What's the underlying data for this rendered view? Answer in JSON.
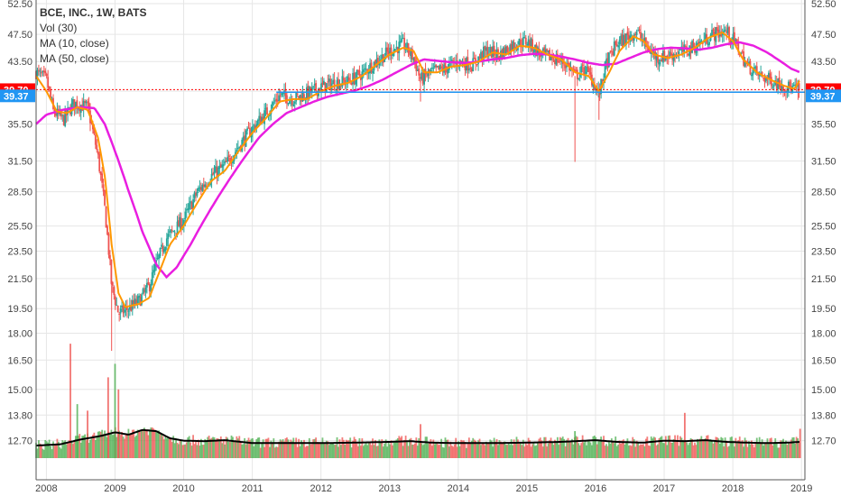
{
  "legend": {
    "title": "BCE, INC., 1W, BATS",
    "volume": "Vol (30)",
    "ma10": "MA (10, close)",
    "ma50": "MA (50, close)"
  },
  "colors": {
    "up": "#26a69a",
    "up_volume": "#4caf50",
    "down": "#ef5350",
    "ma10": "#ff9800",
    "ma50": "#e91ee0",
    "vol_ma": "#000000",
    "badge_last": "#ff0000",
    "badge_ref": "#2196f3",
    "grid": "#e6e6e6"
  },
  "chart_data": {
    "type": "line",
    "title": "BCE, INC., 1W, BATS",
    "x_range": [
      2007.85,
      2019.05
    ],
    "y_scale": "log",
    "ylim": [
      12.0,
      52.5
    ],
    "grid": true,
    "legend_placement": "top-left",
    "x_tick_labels": [
      "2008",
      "2009",
      "2010",
      "2011",
      "2012",
      "2013",
      "2014",
      "2015",
      "2016",
      "2017",
      "2018",
      "2019"
    ],
    "y_tick_labels": [
      "52.50",
      "47.50",
      "43.50",
      "39.50",
      "35.50",
      "31.50",
      "28.50",
      "25.50",
      "23.50",
      "21.50",
      "19.50",
      "18.00",
      "16.50",
      "15.00",
      "13.80",
      "12.70"
    ],
    "last_price": "39.70",
    "reference_price": "39.37",
    "price_anchors": [
      [
        2007.85,
        42.0
      ],
      [
        2008.0,
        41.0
      ],
      [
        2008.1,
        37.0
      ],
      [
        2008.25,
        36.0
      ],
      [
        2008.4,
        38.0
      ],
      [
        2008.6,
        37.5
      ],
      [
        2008.75,
        32.0
      ],
      [
        2008.85,
        27.0
      ],
      [
        2008.95,
        21.0
      ],
      [
        2009.05,
        19.2
      ],
      [
        2009.2,
        19.5
      ],
      [
        2009.35,
        20.0
      ],
      [
        2009.5,
        21.0
      ],
      [
        2009.6,
        22.5
      ],
      [
        2009.75,
        24.5
      ],
      [
        2010.0,
        26.0
      ],
      [
        2010.2,
        28.5
      ],
      [
        2010.4,
        30.0
      ],
      [
        2010.6,
        31.0
      ],
      [
        2010.8,
        33.0
      ],
      [
        2011.0,
        35.0
      ],
      [
        2011.2,
        36.8
      ],
      [
        2011.4,
        39.0
      ],
      [
        2011.6,
        38.5
      ],
      [
        2011.8,
        39.2
      ],
      [
        2012.0,
        40.0
      ],
      [
        2012.2,
        40.6
      ],
      [
        2012.4,
        40.8
      ],
      [
        2012.6,
        41.8
      ],
      [
        2012.8,
        43.5
      ],
      [
        2013.0,
        45.0
      ],
      [
        2013.2,
        46.0
      ],
      [
        2013.35,
        44.0
      ],
      [
        2013.45,
        41.0
      ],
      [
        2013.6,
        42.0
      ],
      [
        2013.8,
        42.5
      ],
      [
        2014.0,
        43.5
      ],
      [
        2014.2,
        43.0
      ],
      [
        2014.4,
        45.0
      ],
      [
        2014.6,
        44.5
      ],
      [
        2014.8,
        46.0
      ],
      [
        2015.0,
        46.5
      ],
      [
        2015.2,
        44.5
      ],
      [
        2015.4,
        44.0
      ],
      [
        2015.6,
        43.0
      ],
      [
        2015.7,
        41.5
      ],
      [
        2015.85,
        42.5
      ],
      [
        2015.95,
        41.0
      ],
      [
        2016.05,
        39.0
      ],
      [
        2016.15,
        43.0
      ],
      [
        2016.3,
        46.0
      ],
      [
        2016.45,
        47.0
      ],
      [
        2016.6,
        48.0
      ],
      [
        2016.75,
        45.5
      ],
      [
        2016.9,
        44.0
      ],
      [
        2017.1,
        44.5
      ],
      [
        2017.3,
        45.0
      ],
      [
        2017.5,
        46.0
      ],
      [
        2017.7,
        47.5
      ],
      [
        2017.9,
        48.0
      ],
      [
        2018.05,
        46.0
      ],
      [
        2018.2,
        43.0
      ],
      [
        2018.4,
        41.5
      ],
      [
        2018.6,
        40.8
      ],
      [
        2018.8,
        40.0
      ],
      [
        2018.95,
        39.7
      ]
    ],
    "ma10_anchors": [
      [
        2007.85,
        41.5
      ],
      [
        2008.0,
        39.5
      ],
      [
        2008.15,
        37.0
      ],
      [
        2008.3,
        36.8
      ],
      [
        2008.45,
        37.5
      ],
      [
        2008.6,
        37.2
      ],
      [
        2008.75,
        34.0
      ],
      [
        2008.85,
        30.0
      ],
      [
        2008.95,
        24.0
      ],
      [
        2009.05,
        20.5
      ],
      [
        2009.15,
        19.6
      ],
      [
        2009.35,
        19.8
      ],
      [
        2009.5,
        20.2
      ],
      [
        2009.65,
        22.0
      ],
      [
        2009.8,
        24.0
      ],
      [
        2010.0,
        25.5
      ],
      [
        2010.2,
        27.5
      ],
      [
        2010.4,
        29.5
      ],
      [
        2010.6,
        30.5
      ],
      [
        2010.8,
        32.5
      ],
      [
        2011.0,
        34.5
      ],
      [
        2011.2,
        36.2
      ],
      [
        2011.4,
        38.2
      ],
      [
        2011.6,
        38.5
      ],
      [
        2011.8,
        38.5
      ],
      [
        2012.0,
        39.5
      ],
      [
        2012.2,
        40.2
      ],
      [
        2012.4,
        40.6
      ],
      [
        2012.6,
        41.5
      ],
      [
        2012.8,
        43.0
      ],
      [
        2013.0,
        44.5
      ],
      [
        2013.2,
        45.5
      ],
      [
        2013.35,
        45.0
      ],
      [
        2013.5,
        42.0
      ],
      [
        2013.7,
        42.0
      ],
      [
        2013.9,
        42.8
      ],
      [
        2014.1,
        43.0
      ],
      [
        2014.3,
        43.5
      ],
      [
        2014.5,
        44.8
      ],
      [
        2014.7,
        44.5
      ],
      [
        2014.9,
        45.8
      ],
      [
        2015.1,
        45.5
      ],
      [
        2015.3,
        44.5
      ],
      [
        2015.5,
        43.8
      ],
      [
        2015.7,
        42.0
      ],
      [
        2015.9,
        41.5
      ],
      [
        2016.05,
        39.5
      ],
      [
        2016.2,
        42.0
      ],
      [
        2016.35,
        45.0
      ],
      [
        2016.55,
        47.2
      ],
      [
        2016.7,
        46.5
      ],
      [
        2016.85,
        44.5
      ],
      [
        2017.05,
        44.0
      ],
      [
        2017.25,
        44.5
      ],
      [
        2017.45,
        45.5
      ],
      [
        2017.65,
        47.0
      ],
      [
        2017.85,
        47.8
      ],
      [
        2018.0,
        46.5
      ],
      [
        2018.15,
        43.8
      ],
      [
        2018.35,
        42.0
      ],
      [
        2018.55,
        41.0
      ],
      [
        2018.75,
        40.2
      ],
      [
        2018.9,
        39.8
      ],
      [
        2018.98,
        41.0
      ]
    ],
    "ma50_anchors": [
      [
        2007.85,
        35.5
      ],
      [
        2008.0,
        36.6
      ],
      [
        2008.25,
        37.2
      ],
      [
        2008.5,
        37.5
      ],
      [
        2008.7,
        37.4
      ],
      [
        2008.85,
        35.5
      ],
      [
        2009.0,
        32.5
      ],
      [
        2009.2,
        28.5
      ],
      [
        2009.4,
        25.0
      ],
      [
        2009.6,
        22.5
      ],
      [
        2009.75,
        21.6
      ],
      [
        2009.9,
        22.3
      ],
      [
        2010.1,
        24.0
      ],
      [
        2010.3,
        26.0
      ],
      [
        2010.5,
        28.0
      ],
      [
        2010.7,
        30.0
      ],
      [
        2010.9,
        32.0
      ],
      [
        2011.1,
        34.0
      ],
      [
        2011.3,
        35.5
      ],
      [
        2011.5,
        36.8
      ],
      [
        2011.7,
        37.5
      ],
      [
        2011.9,
        38.2
      ],
      [
        2012.1,
        38.8
      ],
      [
        2012.3,
        39.2
      ],
      [
        2012.5,
        39.6
      ],
      [
        2012.7,
        40.2
      ],
      [
        2012.9,
        41.0
      ],
      [
        2013.1,
        42.0
      ],
      [
        2013.3,
        43.0
      ],
      [
        2013.5,
        43.8
      ],
      [
        2013.7,
        43.6
      ],
      [
        2013.9,
        43.4
      ],
      [
        2014.1,
        43.3
      ],
      [
        2014.3,
        43.5
      ],
      [
        2014.5,
        43.8
      ],
      [
        2014.7,
        44.0
      ],
      [
        2014.9,
        44.4
      ],
      [
        2015.1,
        44.6
      ],
      [
        2015.3,
        44.5
      ],
      [
        2015.5,
        44.2
      ],
      [
        2015.7,
        43.8
      ],
      [
        2015.9,
        43.3
      ],
      [
        2016.1,
        43.0
      ],
      [
        2016.3,
        43.2
      ],
      [
        2016.5,
        44.0
      ],
      [
        2016.7,
        44.8
      ],
      [
        2016.9,
        45.3
      ],
      [
        2017.1,
        45.5
      ],
      [
        2017.3,
        45.4
      ],
      [
        2017.5,
        45.2
      ],
      [
        2017.7,
        45.5
      ],
      [
        2017.9,
        46.0
      ],
      [
        2018.1,
        46.3
      ],
      [
        2018.3,
        45.8
      ],
      [
        2018.5,
        44.8
      ],
      [
        2018.7,
        43.5
      ],
      [
        2018.85,
        42.5
      ],
      [
        2018.98,
        42.0
      ]
    ],
    "volume_ma_levels": [
      [
        2007.85,
        12.5
      ],
      [
        2008.2,
        12.55
      ],
      [
        2008.5,
        12.75
      ],
      [
        2008.8,
        12.9
      ],
      [
        2009.0,
        13.05
      ],
      [
        2009.2,
        12.95
      ],
      [
        2009.4,
        13.15
      ],
      [
        2009.6,
        13.1
      ],
      [
        2009.8,
        12.8
      ],
      [
        2010.0,
        12.7
      ],
      [
        2010.3,
        12.68
      ],
      [
        2010.6,
        12.72
      ],
      [
        2011.0,
        12.6
      ],
      [
        2011.5,
        12.6
      ],
      [
        2012.0,
        12.6
      ],
      [
        2012.5,
        12.62
      ],
      [
        2013.0,
        12.65
      ],
      [
        2013.3,
        12.68
      ],
      [
        2013.6,
        12.62
      ],
      [
        2014.0,
        12.6
      ],
      [
        2014.5,
        12.6
      ],
      [
        2015.0,
        12.62
      ],
      [
        2015.5,
        12.65
      ],
      [
        2016.0,
        12.72
      ],
      [
        2016.3,
        12.65
      ],
      [
        2016.7,
        12.62
      ],
      [
        2017.0,
        12.7
      ],
      [
        2017.3,
        12.68
      ],
      [
        2017.6,
        12.72
      ],
      [
        2017.9,
        12.65
      ],
      [
        2018.2,
        12.62
      ],
      [
        2018.5,
        12.6
      ],
      [
        2018.8,
        12.62
      ],
      [
        2018.98,
        12.65
      ]
    ],
    "volume_spikes": [
      [
        2008.35,
        17.4
      ],
      [
        2008.45,
        14.3
      ],
      [
        2008.6,
        14.0
      ],
      [
        2008.9,
        15.6
      ],
      [
        2009.0,
        16.3
      ],
      [
        2009.05,
        15.0
      ],
      [
        2013.45,
        13.4
      ],
      [
        2015.7,
        13.1
      ],
      [
        2017.3,
        13.9
      ],
      [
        2018.98,
        13.2
      ]
    ]
  }
}
